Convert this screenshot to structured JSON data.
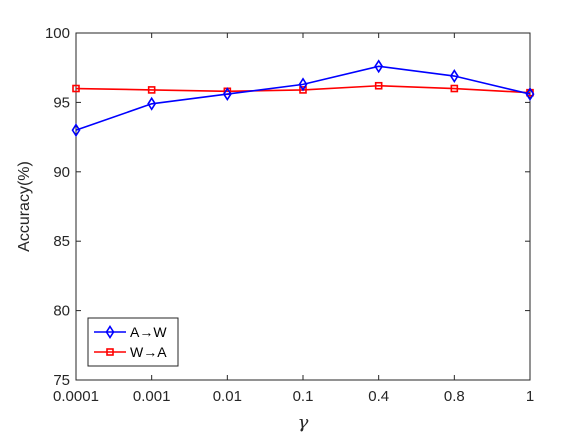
{
  "chart_data": {
    "type": "line",
    "categories": [
      "0.0001",
      "0.001",
      "0.01",
      "0.1",
      "0.4",
      "0.8",
      "1"
    ],
    "series": [
      {
        "name": "A→W",
        "color": "#0000ff",
        "marker": "diamond",
        "values": [
          93.0,
          94.9,
          95.6,
          96.3,
          97.6,
          96.9,
          95.6
        ]
      },
      {
        "name": "W→A",
        "color": "#ff0000",
        "marker": "square",
        "values": [
          96.0,
          95.9,
          95.8,
          95.9,
          96.2,
          96.0,
          95.7
        ]
      }
    ],
    "xlabel": "γ",
    "ylabel": "Accuracy(%)",
    "ylim": [
      75,
      100
    ],
    "yticks": [
      "75",
      "80",
      "85",
      "90",
      "95",
      "100"
    ],
    "grid": false,
    "legend_position": "bottom-left"
  }
}
